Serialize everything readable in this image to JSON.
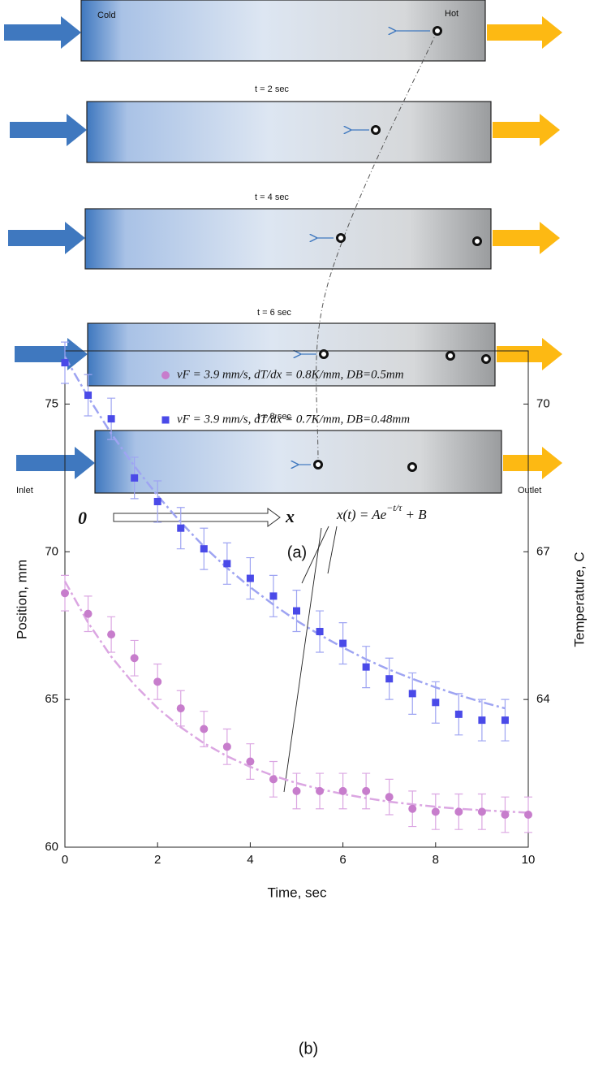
{
  "panel_a": {
    "cold": "Cold",
    "hot": "Hot",
    "frames": [
      "t = 2 sec",
      "t = 4 sec",
      "t = 6 sec",
      "t = 8 sec"
    ],
    "inlet": "Inlet",
    "outlet": "Outlet",
    "origin": "0",
    "axis": "x",
    "label": "(a)"
  },
  "chart_data": {
    "type": "scatter",
    "panel_label": "(b)",
    "xlabel": "Time, sec",
    "ylabel": "Position, mm",
    "y2label": "Temperature, C",
    "annotation": {
      "base": "x(t) = Ae",
      "exponent": "−t/τ",
      "tail": " + B"
    },
    "x": [
      0,
      0.5,
      1,
      1.5,
      2,
      2.5,
      3,
      3.5,
      4,
      4.5,
      5,
      5.5,
      6,
      6.5,
      7,
      7.5,
      8,
      8.5,
      9,
      9.5,
      10
    ],
    "xlim": [
      0,
      10
    ],
    "xticks": [
      0,
      2,
      4,
      6,
      8,
      10
    ],
    "ylim": [
      60,
      76.8
    ],
    "yticks": [
      60,
      65,
      70,
      75
    ],
    "y2lim": [
      61,
      71.08
    ],
    "y2ticks": [
      64,
      67,
      70
    ],
    "series": [
      {
        "name": "vF = 3.9 mm/s,  dT/dx = 0.8K/mm, DB=0.5mm",
        "marker": "circle",
        "color": "#c77dcc",
        "fit_color": "#dba6e2",
        "values": [
          68.6,
          67.9,
          67.2,
          66.4,
          65.6,
          64.7,
          64.0,
          63.4,
          62.9,
          62.3,
          61.9,
          61.9,
          61.9,
          61.9,
          61.7,
          61.3,
          61.2,
          61.2,
          61.2,
          61.1,
          61.1
        ],
        "errors": [
          0.6,
          0.6,
          0.6,
          0.6,
          0.6,
          0.6,
          0.6,
          0.6,
          0.6,
          0.6,
          0.6,
          0.6,
          0.6,
          0.6,
          0.6,
          0.6,
          0.6,
          0.6,
          0.6,
          0.6,
          0.6
        ],
        "fit_values": [
          69.0,
          67.6,
          66.45,
          65.5,
          64.71,
          64.06,
          63.52,
          63.08,
          62.72,
          62.42,
          62.17,
          61.97,
          61.8,
          61.66,
          61.54,
          61.45,
          61.37,
          61.3,
          61.25,
          61.21,
          61.17
        ]
      },
      {
        "name": "vF = 3.9 mm/s,  dT/dx = 0.7K/mm, DB=0.48mm",
        "marker": "square",
        "color": "#4a4ae8",
        "fit_color": "#9ea4f2",
        "values": [
          76.4,
          75.3,
          74.5,
          72.5,
          71.7,
          70.8,
          70.1,
          69.6,
          69.1,
          68.5,
          68.0,
          67.3,
          66.9,
          66.1,
          65.7,
          65.2,
          64.9,
          64.5,
          64.3,
          64.3,
          null
        ],
        "errors": [
          0.7,
          0.7,
          0.7,
          0.7,
          0.7,
          0.7,
          0.7,
          0.7,
          0.7,
          0.7,
          0.7,
          0.7,
          0.7,
          0.7,
          0.7,
          0.7,
          0.7,
          0.7,
          0.7,
          0.7,
          null
        ],
        "fit_values": [
          76.6,
          75.24,
          74.0,
          72.9,
          71.9,
          71.0,
          70.18,
          69.45,
          68.8,
          68.21,
          67.67,
          67.19,
          66.76,
          66.36,
          66.01,
          65.7,
          65.41,
          65.15,
          64.91,
          64.7,
          null
        ]
      }
    ]
  }
}
